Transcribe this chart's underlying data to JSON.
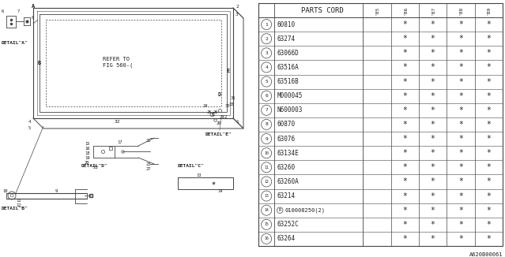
{
  "bg_color": "#ffffff",
  "parts_cord_header": "PARTS CORD",
  "year_cols": [
    "'85",
    "'86",
    "'87",
    "'88",
    "'89"
  ],
  "rows": [
    {
      "num": "1",
      "code": "60810",
      "stars": [
        false,
        true,
        true,
        true,
        true
      ]
    },
    {
      "num": "2",
      "code": "63274",
      "stars": [
        false,
        true,
        true,
        true,
        true
      ]
    },
    {
      "num": "3",
      "code": "63066D",
      "stars": [
        false,
        true,
        true,
        true,
        true
      ]
    },
    {
      "num": "4",
      "code": "63516A",
      "stars": [
        false,
        true,
        true,
        true,
        true
      ]
    },
    {
      "num": "5",
      "code": "63516B",
      "stars": [
        false,
        true,
        true,
        true,
        true
      ]
    },
    {
      "num": "6",
      "code": "M000045",
      "stars": [
        false,
        true,
        true,
        true,
        true
      ]
    },
    {
      "num": "7",
      "code": "N600003",
      "stars": [
        false,
        true,
        true,
        true,
        true
      ]
    },
    {
      "num": "8",
      "code": "60870",
      "stars": [
        false,
        true,
        true,
        true,
        true
      ]
    },
    {
      "num": "9",
      "code": "63076",
      "stars": [
        false,
        true,
        true,
        true,
        true
      ]
    },
    {
      "num": "10",
      "code": "63134E",
      "stars": [
        false,
        true,
        true,
        true,
        true
      ]
    },
    {
      "num": "11",
      "code": "63260",
      "stars": [
        false,
        true,
        true,
        true,
        true
      ]
    },
    {
      "num": "12",
      "code": "63260A",
      "stars": [
        false,
        true,
        true,
        true,
        true
      ]
    },
    {
      "num": "13",
      "code": "63214",
      "stars": [
        false,
        true,
        true,
        true,
        true
      ]
    },
    {
      "num": "14",
      "code": "010008250(2)",
      "stars": [
        false,
        true,
        true,
        true,
        true
      ],
      "prefix_circle": "B"
    },
    {
      "num": "15",
      "code": "63252C",
      "stars": [
        false,
        true,
        true,
        true,
        true
      ]
    },
    {
      "num": "16",
      "code": "63264",
      "stars": [
        false,
        true,
        true,
        true,
        true
      ]
    }
  ],
  "diagram_label": "A620B00061",
  "lc": "#444444",
  "tc": "#222222"
}
